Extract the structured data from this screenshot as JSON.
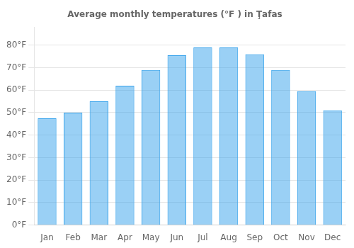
{
  "chart_data": {
    "type": "bar",
    "title": "Average monthly temperatures (°F ) in Ţafas",
    "categories": [
      "Jan",
      "Feb",
      "Mar",
      "Apr",
      "May",
      "Jun",
      "Jul",
      "Aug",
      "Sep",
      "Oct",
      "Nov",
      "Dec"
    ],
    "values": [
      47.5,
      50.0,
      55.0,
      62.0,
      69.0,
      75.5,
      79.0,
      79.0,
      76.0,
      69.0,
      59.5,
      51.0
    ],
    "ylim": [
      0,
      88
    ],
    "yticks": [
      {
        "value": 0,
        "label": "0°F"
      },
      {
        "value": 10,
        "label": "10°F"
      },
      {
        "value": 20,
        "label": "20°F"
      },
      {
        "value": 30,
        "label": "30°F"
      },
      {
        "value": 40,
        "label": "40°F"
      },
      {
        "value": 50,
        "label": "50°F"
      },
      {
        "value": 60,
        "label": "60°F"
      },
      {
        "value": 70,
        "label": "70°F"
      },
      {
        "value": 80,
        "label": "80°F"
      }
    ],
    "grid": true
  }
}
